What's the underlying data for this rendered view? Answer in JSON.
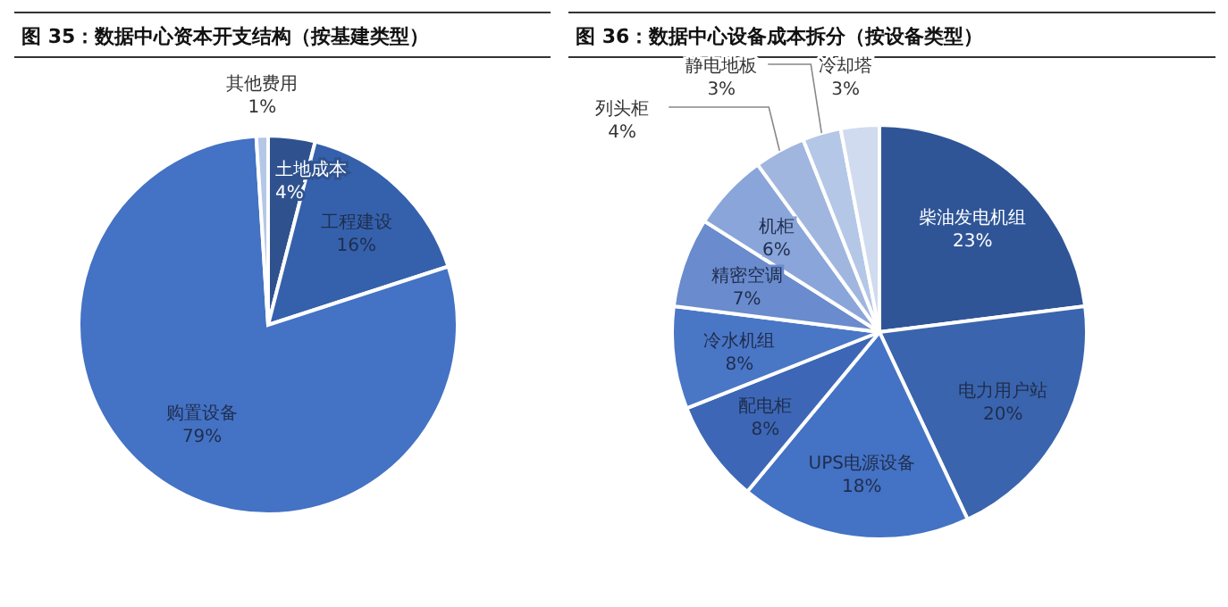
{
  "chart_data": [
    {
      "type": "pie",
      "title": "图 35：数据中心资本开支结构（按基建类型）",
      "categories": [
        "土地成本",
        "工程建设",
        "购置设备",
        "其他费用"
      ],
      "values": [
        4,
        16,
        79,
        1
      ],
      "colors": [
        "#2f528f",
        "#3561ac",
        "#4472c4",
        "#b4c7e7"
      ],
      "value_labels": [
        "4%",
        "16%",
        "79%",
        "1%"
      ]
    },
    {
      "type": "pie",
      "title": "图 36：数据中心设备成本拆分（按设备类型）",
      "categories": [
        "柴油发电机组",
        "电力用户站",
        "UPS电源设备",
        "配电柜",
        "冷水机组",
        "精密空调",
        "机柜",
        "列头柜",
        "静电地板",
        "冷却塔"
      ],
      "values": [
        23,
        20,
        18,
        8,
        8,
        7,
        6,
        4,
        3,
        3
      ],
      "colors": [
        "#2f5597",
        "#3a64ad",
        "#4472c4",
        "#3d67b6",
        "#4a76c6",
        "#6a8bcd",
        "#8aa5d9",
        "#a1b6df",
        "#b4c7e7",
        "#d0dbef"
      ],
      "value_labels": [
        "23%",
        "20%",
        "18%",
        "8%",
        "8%",
        "7%",
        "6%",
        "4%",
        "3%",
        "3%"
      ]
    }
  ]
}
